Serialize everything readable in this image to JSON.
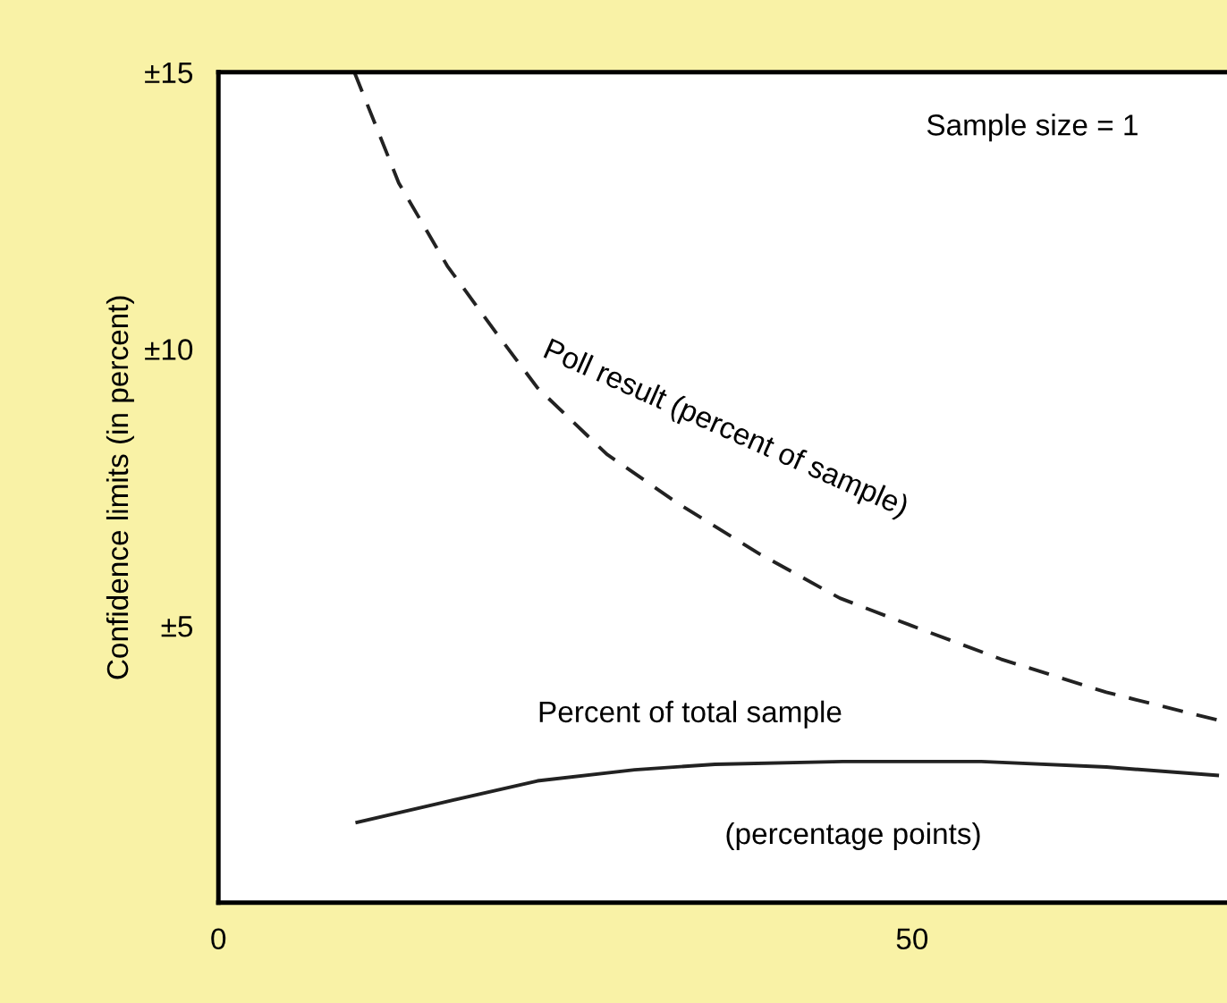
{
  "chart_data": {
    "type": "line",
    "ylabel": "Confidence limits (in percent)",
    "series": [
      {
        "name": "Poll result (percent of sample)",
        "color": "#222222",
        "line_style": "dashed",
        "x": [
          9.8,
          13,
          16.5,
          20,
          23,
          28,
          33.2,
          39,
          44.8,
          50,
          56.4,
          64,
          72
        ],
        "values": [
          15,
          13,
          11.5,
          10.3,
          9.3,
          8.1,
          7.2,
          6.3,
          5.5,
          5,
          4.4,
          3.8,
          3.3
        ]
      },
      {
        "name": "Percent of total sample",
        "color": "#222222",
        "line_style": "solid",
        "x": [
          10,
          16,
          23,
          30,
          35.8,
          45,
          55,
          64,
          72
        ],
        "values": [
          1.45,
          1.8,
          2.2,
          2.4,
          2.5,
          2.55,
          2.55,
          2.45,
          2.3
        ]
      }
    ],
    "annotations": [
      "(percentage points)",
      "Sample size = 1"
    ],
    "xlim": [
      0,
      72.7
    ],
    "ylim": [
      0,
      15
    ],
    "xticks": [
      0,
      50
    ],
    "yticks": [
      {
        "value": 5,
        "label": "±5"
      },
      {
        "value": 10,
        "label": "±10"
      },
      {
        "value": 15,
        "label": "±15"
      }
    ],
    "grid": false,
    "legend": false,
    "marker": "none"
  }
}
